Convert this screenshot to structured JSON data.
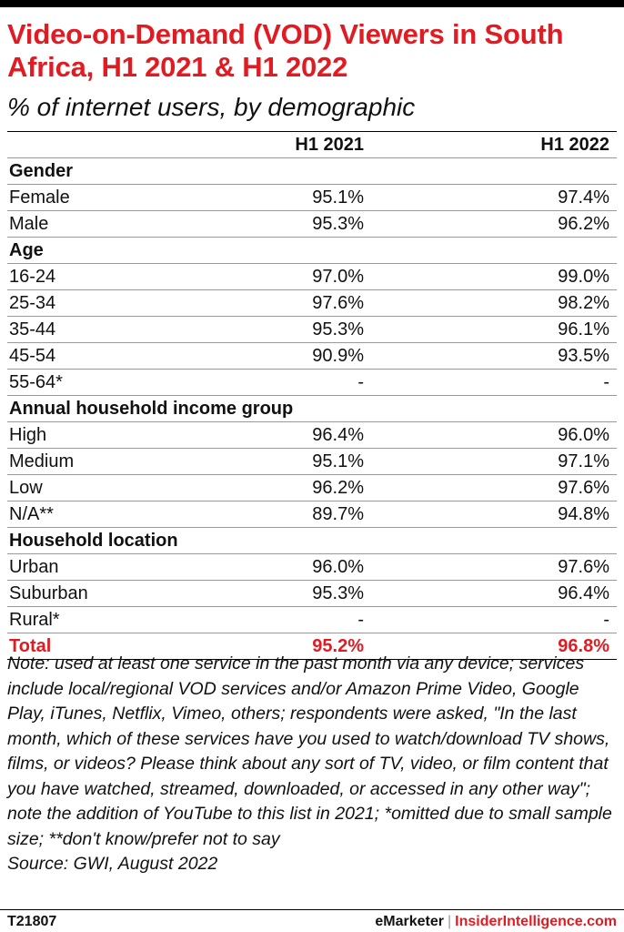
{
  "title": "Video-on-Demand (VOD) Viewers in South Africa, H1 2021 & H1 2022",
  "subtitle": "% of internet users, by demographic",
  "chart_data": {
    "type": "table",
    "columns": [
      "",
      "H1 2021",
      "H1 2022"
    ],
    "rows": [
      {
        "kind": "section",
        "label": "Gender"
      },
      {
        "kind": "data",
        "label": "Female",
        "values": [
          "95.1%",
          "97.4%"
        ]
      },
      {
        "kind": "data",
        "label": "Male",
        "values": [
          "95.3%",
          "96.2%"
        ]
      },
      {
        "kind": "section",
        "label": "Age"
      },
      {
        "kind": "data",
        "label": "16-24",
        "values": [
          "97.0%",
          "99.0%"
        ]
      },
      {
        "kind": "data",
        "label": "25-34",
        "values": [
          "97.6%",
          "98.2%"
        ]
      },
      {
        "kind": "data",
        "label": "35-44",
        "values": [
          "95.3%",
          "96.1%"
        ]
      },
      {
        "kind": "data",
        "label": "45-54",
        "values": [
          "90.9%",
          "93.5%"
        ]
      },
      {
        "kind": "data",
        "label": "55-64*",
        "values": [
          "-",
          "-"
        ]
      },
      {
        "kind": "section",
        "label": "Annual household income group"
      },
      {
        "kind": "data",
        "label": "High",
        "values": [
          "96.4%",
          "96.0%"
        ]
      },
      {
        "kind": "data",
        "label": "Medium",
        "values": [
          "95.1%",
          "97.1%"
        ]
      },
      {
        "kind": "data",
        "label": "Low",
        "values": [
          "96.2%",
          "97.6%"
        ]
      },
      {
        "kind": "data",
        "label": "N/A**",
        "values": [
          "89.7%",
          "94.8%"
        ]
      },
      {
        "kind": "section",
        "label": "Household location"
      },
      {
        "kind": "data",
        "label": "Urban",
        "values": [
          "96.0%",
          "97.6%"
        ]
      },
      {
        "kind": "data",
        "label": "Suburban",
        "values": [
          "95.3%",
          "96.4%"
        ]
      },
      {
        "kind": "data",
        "label": "Rural*",
        "values": [
          "-",
          "-"
        ]
      },
      {
        "kind": "total",
        "label": "Total",
        "values": [
          "95.2%",
          "96.8%"
        ]
      }
    ]
  },
  "note": "Note: used at least one service in the past month via any device; services include local/regional VOD services and/or Amazon Prime Video, Google Play, iTunes, Netflix, Vimeo, others; respondents were asked, \"In the last month, which of these services have you used to watch/download TV shows, films, or videos? Please think about any sort of TV, video, or film content that you have watched, streamed, downloaded, or accessed in any other way\"; note the addition of YouTube to this list in 2021; *omitted due to small sample size; **don't know/prefer not to say",
  "source": "Source: GWI, August 2022",
  "footer": {
    "code": "T21807",
    "brand1": "eMarketer",
    "separator": "|",
    "brand2": "InsiderIntelligence.com"
  },
  "colors": {
    "accent": "#e11b22",
    "text": "#111111",
    "rule": "#999999"
  }
}
